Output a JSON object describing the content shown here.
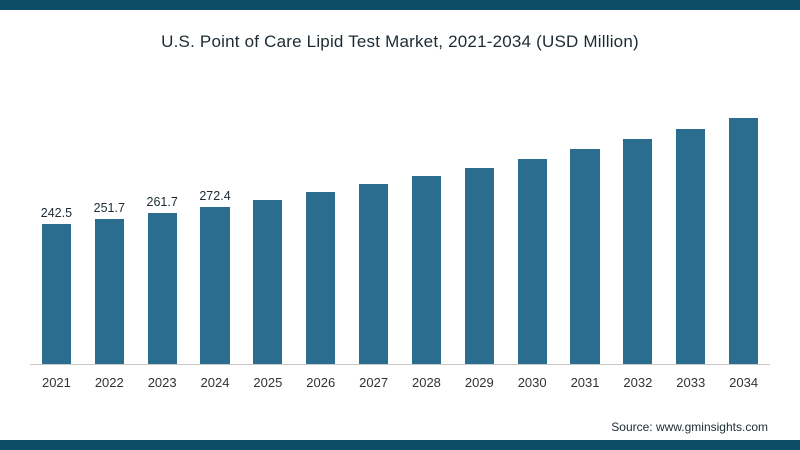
{
  "page": {
    "background": "#ffffff",
    "edge_strip_color": "#0d4d66"
  },
  "chart_data": {
    "type": "bar",
    "title": "U.S. Point of Care Lipid Test Market, 2021-2034 (USD Million)",
    "categories": [
      "2021",
      "2022",
      "2023",
      "2024",
      "2025",
      "2026",
      "2027",
      "2028",
      "2029",
      "2030",
      "2031",
      "2032",
      "2033",
      "2034"
    ],
    "values": [
      242.5,
      251.7,
      261.7,
      272.4,
      284.8,
      297.8,
      311.4,
      325.6,
      340.5,
      356.1,
      372.4,
      389.4,
      407.2,
      425.8
    ],
    "shown_data_labels": [
      "242.5",
      "251.7",
      "261.7",
      "272.4"
    ],
    "bar_color": "#2b6d8f",
    "xlabel": "",
    "ylabel": "",
    "ylim": [
      0,
      520
    ],
    "grid": false,
    "legend": false,
    "axis_line_color": "#c9c9c9"
  },
  "source": {
    "label": "Source: www.gminsights.com"
  }
}
